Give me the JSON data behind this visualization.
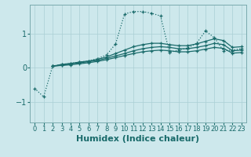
{
  "bg_color": "#cde8ec",
  "line_color": "#1a6b6b",
  "grid_color": "#aacfd4",
  "xlabel": "Humidex (Indice chaleur)",
  "xlabel_fontsize": 8,
  "tick_fontsize": 6,
  "xlim": [
    -0.5,
    23.5
  ],
  "ylim": [
    -1.6,
    1.85
  ],
  "yticks": [
    -1,
    0,
    1
  ],
  "xticks": [
    0,
    1,
    2,
    3,
    4,
    5,
    6,
    7,
    8,
    9,
    10,
    11,
    12,
    13,
    14,
    15,
    16,
    17,
    18,
    19,
    20,
    21,
    22,
    23
  ],
  "series": [
    {
      "x": [
        0,
        1,
        2,
        3,
        4,
        5,
        6,
        7,
        8,
        9,
        10,
        11,
        12,
        13,
        14,
        15,
        16,
        17,
        18,
        19,
        20,
        21,
        22,
        23
      ],
      "y": [
        -0.6,
        -0.85,
        0.05,
        0.1,
        0.13,
        0.17,
        0.2,
        0.27,
        0.38,
        0.7,
        1.58,
        1.65,
        1.65,
        1.6,
        1.52,
        0.45,
        0.52,
        0.58,
        0.72,
        1.08,
        0.88,
        0.5,
        0.52,
        0.56
      ],
      "linestyle": ":",
      "linewidth": 0.9
    },
    {
      "x": [
        2,
        3,
        4,
        5,
        6,
        7,
        8,
        9,
        10,
        11,
        12,
        13,
        14,
        15,
        16,
        17,
        18,
        19,
        20,
        21,
        22,
        23
      ],
      "y": [
        0.05,
        0.1,
        0.13,
        0.17,
        0.2,
        0.25,
        0.32,
        0.42,
        0.52,
        0.62,
        0.68,
        0.72,
        0.72,
        0.68,
        0.65,
        0.65,
        0.7,
        0.78,
        0.85,
        0.8,
        0.6,
        0.62
      ],
      "linestyle": "-",
      "linewidth": 0.9
    },
    {
      "x": [
        2,
        3,
        4,
        5,
        6,
        7,
        8,
        9,
        10,
        11,
        12,
        13,
        14,
        15,
        16,
        17,
        18,
        19,
        20,
        21,
        22,
        23
      ],
      "y": [
        0.05,
        0.08,
        0.11,
        0.15,
        0.18,
        0.22,
        0.28,
        0.35,
        0.42,
        0.5,
        0.56,
        0.6,
        0.62,
        0.6,
        0.56,
        0.56,
        0.6,
        0.65,
        0.72,
        0.68,
        0.5,
        0.52
      ],
      "linestyle": "-",
      "linewidth": 0.9
    },
    {
      "x": [
        2,
        3,
        4,
        5,
        6,
        7,
        8,
        9,
        10,
        11,
        12,
        13,
        14,
        15,
        16,
        17,
        18,
        19,
        20,
        21,
        22,
        23
      ],
      "y": [
        0.05,
        0.07,
        0.09,
        0.12,
        0.15,
        0.19,
        0.24,
        0.3,
        0.36,
        0.42,
        0.47,
        0.5,
        0.52,
        0.5,
        0.47,
        0.47,
        0.5,
        0.55,
        0.6,
        0.57,
        0.43,
        0.45
      ],
      "linestyle": "-",
      "linewidth": 0.9
    }
  ]
}
